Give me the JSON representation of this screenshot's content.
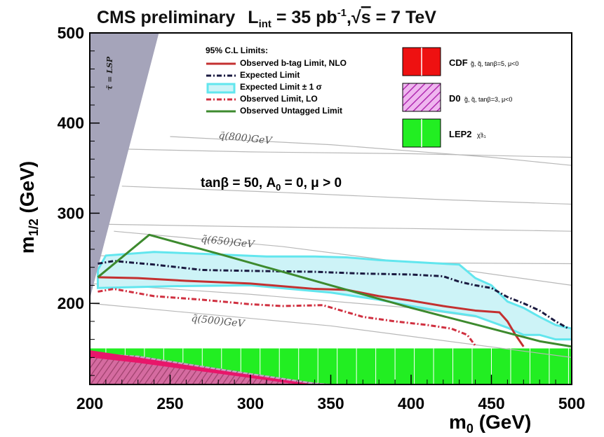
{
  "chart_data": {
    "type": "line",
    "title_prefix": "CMS preliminary",
    "title_lumi": "L",
    "title_lumi_sub": "int",
    "title_lumi_value": " = 35 pb",
    "title_lumi_exp": "-1",
    "title_sep": ",",
    "title_sqrt": "√",
    "title_s": "s",
    "title_energy": " = 7 TeV",
    "xlabel_main": "m",
    "xlabel_sub": "0",
    "xlabel_unit": " (GeV)",
    "ylabel_main": "m",
    "ylabel_sub": "1/2",
    "ylabel_unit": " (GeV)",
    "xlim": [
      200,
      500
    ],
    "ylim": [
      110,
      500
    ],
    "xticks": [
      "200",
      "250",
      "300",
      "350",
      "400",
      "450",
      "500"
    ],
    "yticks": [
      "200",
      "300",
      "400",
      "500"
    ],
    "xtick_values": [
      200,
      250,
      300,
      350,
      400,
      450,
      500
    ],
    "ytick_values": [
      200,
      300,
      400,
      500
    ],
    "legend_header": "95% C.L Limits:",
    "legend_position": "top-center",
    "params_text": "tanβ = 50, A",
    "params_sub": "0",
    "params_rest": " = 0, μ > 0",
    "lsp_label": "τ̃ = LSP",
    "lsp_region": [
      [
        200,
        205
      ],
      [
        200,
        500
      ],
      [
        243,
        500
      ]
    ],
    "squark_labels": [
      {
        "text": "q̃(800)GeV",
        "x": 280,
        "y": 383
      },
      {
        "text": "q̃(650)GeV",
        "x": 269,
        "y": 268
      },
      {
        "text": "q̃(500)GeV",
        "x": 263,
        "y": 180
      }
    ],
    "squark_contours": [
      [
        [
          250,
          385
        ],
        [
          350,
          376
        ],
        [
          450,
          362
        ],
        [
          500,
          353
        ]
      ],
      [
        [
          200,
          372
        ],
        [
          300,
          368
        ],
        [
          400,
          366
        ],
        [
          500,
          362
        ]
      ],
      [
        [
          220,
          330
        ],
        [
          320,
          323
        ],
        [
          420,
          315
        ],
        [
          500,
          310
        ]
      ],
      [
        [
          200,
          288
        ],
        [
          300,
          285
        ],
        [
          400,
          283
        ],
        [
          500,
          280
        ]
      ],
      [
        [
          200,
          253
        ],
        [
          300,
          250
        ],
        [
          400,
          245
        ],
        [
          500,
          244
        ]
      ],
      [
        [
          215,
          280
        ],
        [
          320,
          263
        ],
        [
          420,
          240
        ],
        [
          500,
          220
        ]
      ],
      [
        [
          200,
          200
        ],
        [
          350,
          175
        ],
        [
          500,
          140
        ]
      ],
      [
        [
          200,
          222
        ],
        [
          300,
          210
        ],
        [
          400,
          195
        ],
        [
          500,
          170
        ]
      ]
    ],
    "side_legend": [
      {
        "exp": "CDF",
        "label": "g̃, q̃, tanβ=5, μ<0",
        "color": "#ee1111",
        "style": "solid-with-white-line"
      },
      {
        "exp": "D0",
        "label": "g̃, q̃, tanβ=3, μ<0",
        "color": "#cc44cc",
        "style": "hatched"
      },
      {
        "exp": "LEP2",
        "label": "χ̃±₁",
        "color": "#22ee22",
        "style": "solid-with-white-lines"
      }
    ],
    "series": [
      {
        "name": "Observed b-tag Limit, NLO",
        "color": "#c43030",
        "style": "solid",
        "x": [
          205,
          230,
          260,
          300,
          340,
          360,
          380,
          400,
          420,
          440,
          455,
          460,
          465,
          470
        ],
        "y": [
          229,
          228,
          225,
          222,
          216,
          215,
          208,
          203,
          197,
          192,
          190,
          180,
          165,
          152
        ]
      },
      {
        "name": "Expected Limit",
        "color": "#1a1a40",
        "style": "dashdot",
        "x": [
          205,
          215,
          240,
          270,
          300,
          340,
          370,
          400,
          420,
          430,
          440,
          450,
          460,
          470,
          480,
          490,
          498
        ],
        "y": [
          244,
          247,
          243,
          237,
          236,
          235,
          233,
          232,
          230,
          224,
          220,
          217,
          207,
          200,
          192,
          180,
          172
        ]
      },
      {
        "name": "Expected Limit ± 1 σ",
        "color": "#62e6ee",
        "fill": "#cdf3f7",
        "style": "band",
        "upper_x": [
          205,
          210,
          240,
          270,
          310,
          340,
          360,
          380,
          410,
          430,
          440,
          450,
          460,
          470,
          480,
          490,
          500
        ],
        "upper_y": [
          237,
          253,
          257,
          255,
          252,
          252,
          251,
          248,
          245,
          243,
          228,
          220,
          202,
          195,
          185,
          176,
          172
        ],
        "lower_x": [
          205,
          250,
          300,
          350,
          380,
          400,
          420,
          440,
          460,
          470,
          480,
          490,
          500
        ],
        "lower_y": [
          217,
          219,
          220,
          212,
          204,
          197,
          191,
          186,
          173,
          165,
          165,
          160,
          160
        ]
      },
      {
        "name": "Observed Limit, LO",
        "color": "#d03040",
        "style": "dashdot",
        "x": [
          205,
          215,
          240,
          270,
          300,
          320,
          345,
          370,
          390,
          410,
          425,
          435,
          440
        ],
        "y": [
          213,
          216,
          208,
          204,
          199,
          197,
          198,
          185,
          180,
          176,
          172,
          165,
          153
        ]
      },
      {
        "name": "Observed Untagged Limit",
        "color": "#3d8a2e",
        "style": "solid",
        "x": [
          205,
          237,
          280,
          320,
          350,
          400,
          450,
          480,
          500
        ],
        "y": [
          229,
          276,
          255,
          235,
          220,
          195,
          172,
          158,
          152
        ]
      }
    ],
    "lep2_band": {
      "y_low": 110,
      "y_high": 150,
      "color": "#22ee22"
    },
    "cdf_region": [
      [
        200,
        110
      ],
      [
        200,
        148
      ],
      [
        230,
        140
      ],
      [
        280,
        126
      ],
      [
        340,
        110
      ]
    ],
    "cdf_color": "#e8166a",
    "d0_region": [
      [
        200,
        145
      ],
      [
        230,
        142
      ],
      [
        280,
        128
      ],
      [
        340,
        112
      ],
      [
        355,
        110
      ],
      [
        200,
        110
      ]
    ],
    "d0_color": "#b06aa8"
  }
}
